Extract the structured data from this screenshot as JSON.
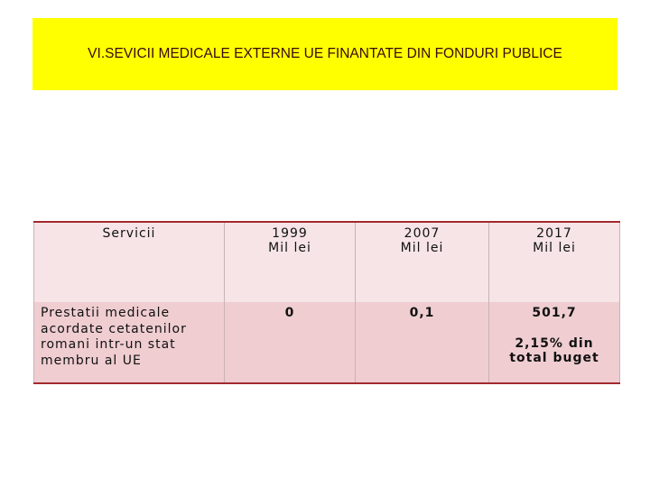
{
  "title": "VI.SEVICII MEDICALE EXTERNE UE FINANTATE DIN FONDURI PUBLICE",
  "table": {
    "header": [
      [
        "Servicii"
      ],
      [
        "1999",
        "Mil lei"
      ],
      [
        "2007",
        "Mil lei"
      ],
      [
        "2017",
        "Mil lei"
      ]
    ],
    "rows": [
      [
        [
          "Prestatii medicale",
          "acordate cetatenilor",
          "romani intr-un stat",
          "membru al UE"
        ],
        [
          "0"
        ],
        [
          "0,1"
        ],
        [
          "501,7",
          "2,15% din",
          "total buget"
        ]
      ]
    ]
  }
}
